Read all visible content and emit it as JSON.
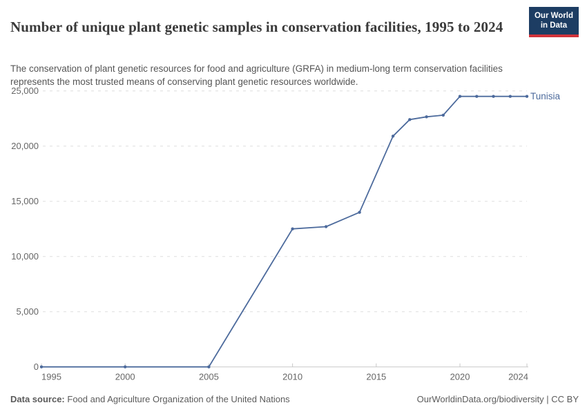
{
  "header": {
    "title": "Number of unique plant genetic samples in conservation facilities, 1995 to 2024",
    "subtitle": "The conservation of plant genetic resources for food and agriculture (GRFA) in medium-long term conservation facilities represents the most trusted means of conserving plant genetic resources worldwide.",
    "logo": {
      "line1": "Our World",
      "line2": "in Data",
      "bg_color": "#1d3d63",
      "accent_color": "#d1333b",
      "text_color": "#ffffff"
    }
  },
  "chart_data": {
    "type": "line",
    "title": "Number of unique plant genetic samples in conservation facilities, 1995 to 2024",
    "series": [
      {
        "name": "Tunisia",
        "color": "#4c6a9c",
        "x": [
          1995,
          2000,
          2005,
          2010,
          2012,
          2014,
          2016,
          2017,
          2018,
          2019,
          2020,
          2021,
          2022,
          2023,
          2024
        ],
        "values": [
          0,
          0,
          0,
          12500,
          12700,
          14000,
          20900,
          22400,
          22650,
          22800,
          24500,
          24500,
          24500,
          24500,
          24500
        ]
      }
    ],
    "xlabel": "",
    "ylabel": "",
    "xlim": [
      1995,
      2024
    ],
    "ylim": [
      0,
      25000
    ],
    "x_ticks": {
      "values": [
        1995,
        2000,
        2005,
        2010,
        2015,
        2020,
        2024
      ],
      "labels": [
        "1995",
        "2000",
        "2005",
        "2010",
        "2015",
        "2020",
        "2024"
      ]
    },
    "y_ticks": {
      "values": [
        0,
        5000,
        10000,
        15000,
        20000,
        25000
      ],
      "labels": [
        "0",
        "5,000",
        "10,000",
        "15,000",
        "20,000",
        "25,000"
      ]
    },
    "grid": "horizontal-dashed",
    "legend": "line-end-label",
    "colors": {
      "grid": "#dddddd",
      "axis": "#c8c8c8",
      "tick_text": "#666666"
    }
  },
  "footer": {
    "source_label": "Data source:",
    "source_value": "Food and Agriculture Organization of the United Nations",
    "attribution": "OurWorldinData.org/biodiversity | CC BY"
  }
}
